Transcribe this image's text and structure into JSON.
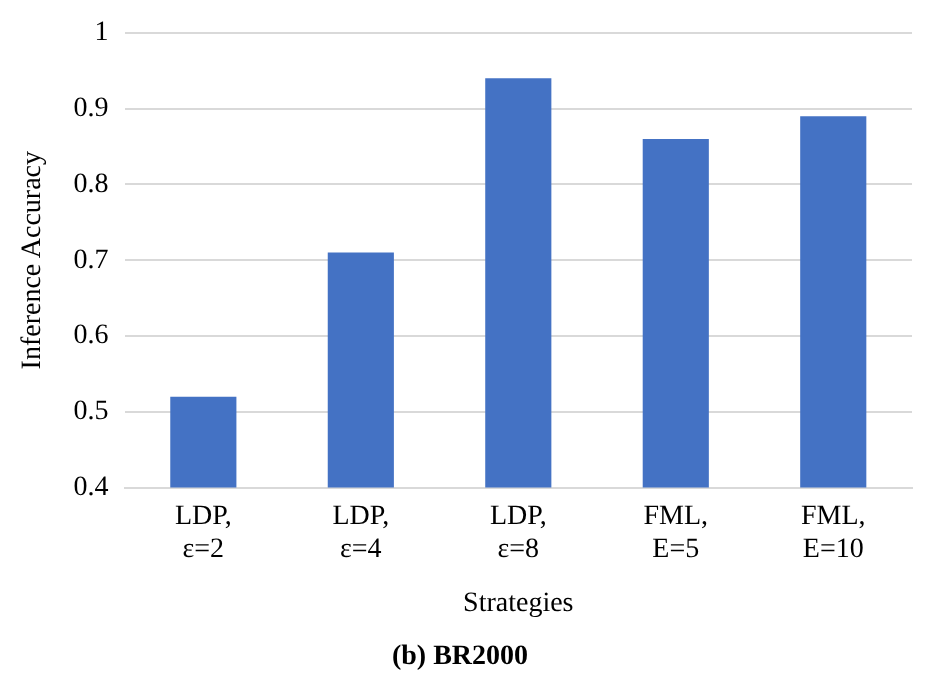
{
  "chart_data": {
    "type": "bar",
    "title": "(b) BR2000",
    "xlabel": "Strategies",
    "ylabel": "Inference Accuracy",
    "categories": [
      "LDP, ε=2",
      "LDP, ε=4",
      "LDP, ε=8",
      "FML, E=5",
      "FML, E=10"
    ],
    "values": [
      0.52,
      0.71,
      0.94,
      0.86,
      0.89
    ],
    "color": "#4472c4",
    "ylim": [
      0.4,
      1
    ],
    "yticks": [
      0.4,
      0.5,
      0.6,
      0.7,
      0.8,
      0.9,
      1
    ],
    "grid": "y",
    "legend": false
  }
}
